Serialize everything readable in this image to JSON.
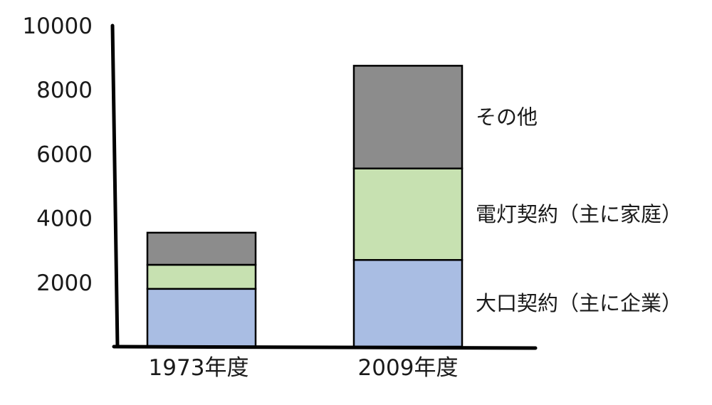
{
  "chart_data": {
    "type": "bar",
    "stacked": true,
    "title": "",
    "xlabel": "",
    "ylabel": "",
    "categories": [
      "1973年度",
      "2009年度"
    ],
    "ylim": [
      0,
      10000
    ],
    "yticks": [
      "2000",
      "4000",
      "6000",
      "8000",
      "10000"
    ],
    "series": [
      {
        "name": "大口契約（主に企業）",
        "values": [
          1800,
          2700
        ],
        "color": "#a9bde3"
      },
      {
        "name": "電灯契約（主に家庭）",
        "values": [
          750,
          2850
        ],
        "color": "#c7e1b1"
      },
      {
        "name": "その他",
        "values": [
          1000,
          3200
        ],
        "color": "#8c8c8c"
      }
    ],
    "legend_placement": "right, beside the 2009年度 stack",
    "grid": false
  }
}
